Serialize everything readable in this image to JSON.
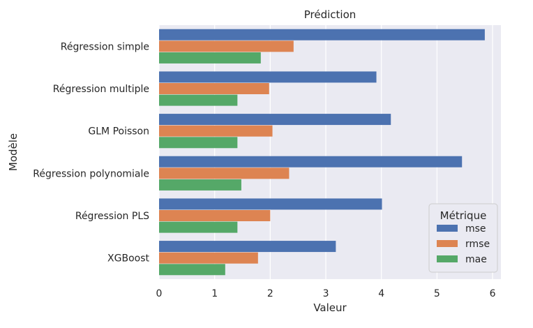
{
  "chart_data": {
    "type": "bar",
    "orientation": "horizontal",
    "title": "Prédiction",
    "xlabel": "Valeur",
    "ylabel": "Modèle",
    "categories": [
      "Régression simple",
      "Régression multiple",
      "GLM Poisson",
      "Régression polynomiale",
      "Régression PLS",
      "XGBoost"
    ],
    "series": [
      {
        "name": "mse",
        "color": "#4c72b0",
        "values": [
          5.86,
          3.91,
          4.17,
          5.45,
          4.01,
          3.18
        ]
      },
      {
        "name": "rmse",
        "color": "#dd8452",
        "values": [
          2.42,
          1.98,
          2.04,
          2.34,
          2.0,
          1.78
        ]
      },
      {
        "name": "mae",
        "color": "#55a868",
        "values": [
          1.83,
          1.41,
          1.41,
          1.48,
          1.41,
          1.19
        ]
      }
    ],
    "xlim": [
      0,
      6.15
    ],
    "xticks": [
      "0",
      "1",
      "2",
      "3",
      "4",
      "5",
      "6"
    ],
    "legend": {
      "title": "Métrique",
      "placement": "lower-right"
    },
    "grid": true,
    "background": "#eaeaf2"
  }
}
